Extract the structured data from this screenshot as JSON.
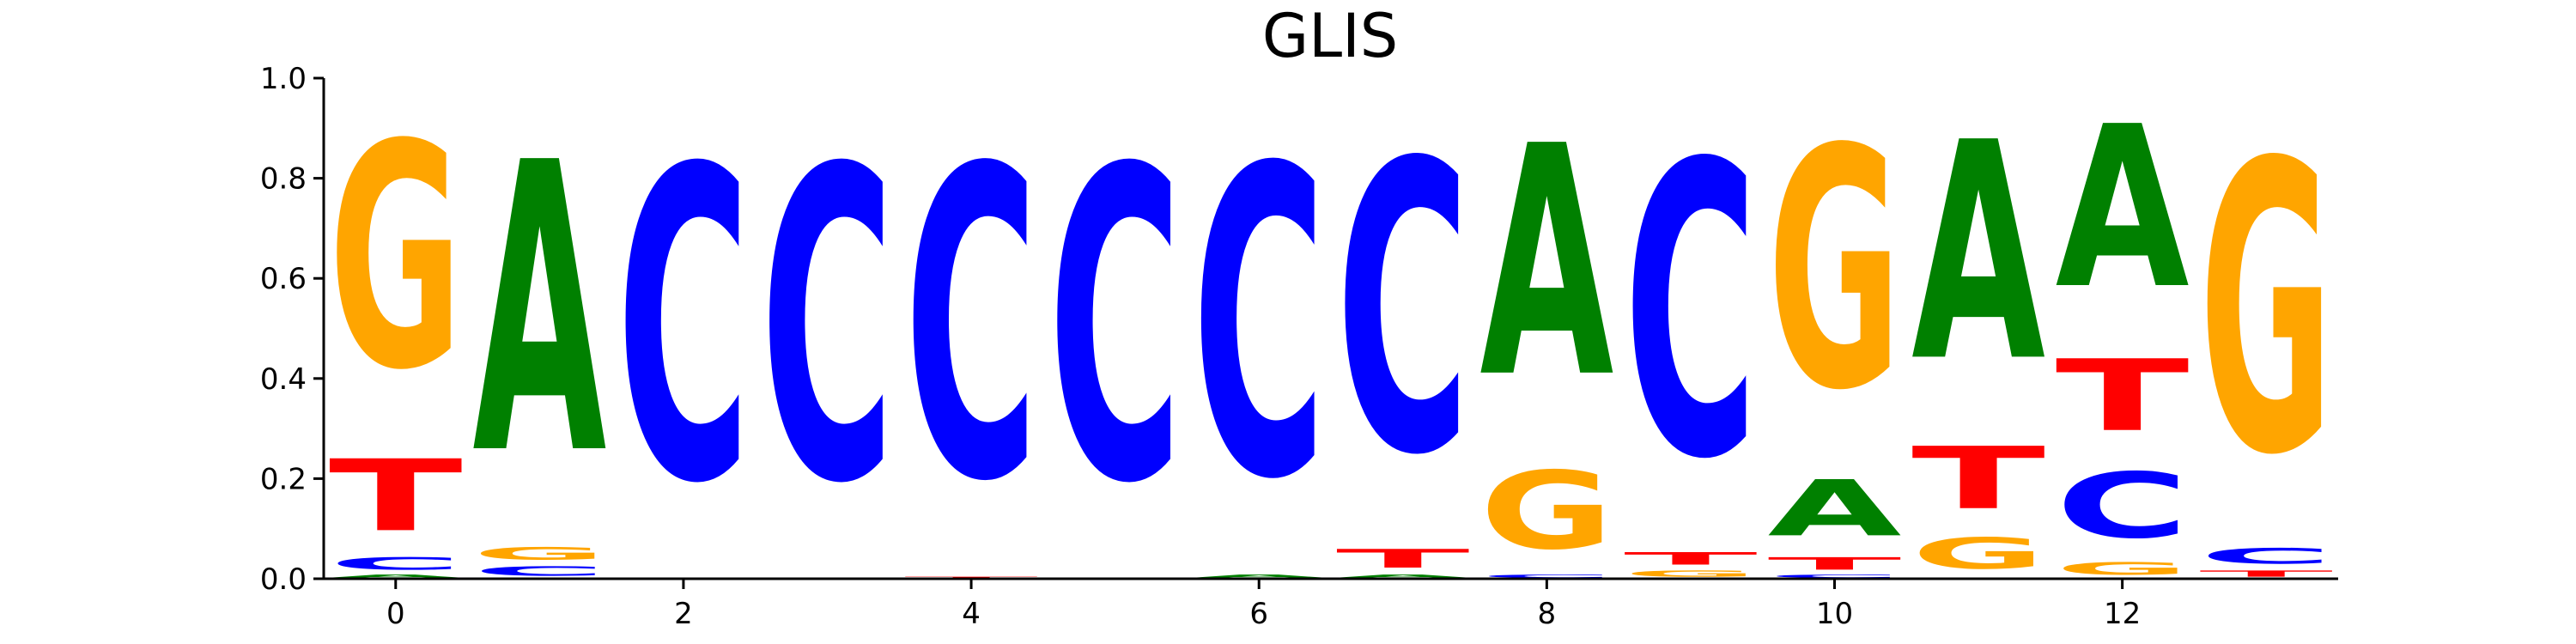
{
  "chart_data": {
    "type": "sequence-logo",
    "title": "GLIS",
    "xlabel": "",
    "ylabel": "",
    "ylim": [
      0,
      1.0
    ],
    "xlim": [
      -0.5,
      13.5
    ],
    "y_ticks": [
      "0.0",
      "0.2",
      "0.4",
      "0.6",
      "0.8",
      "1.0"
    ],
    "x_ticks": [
      "0",
      "2",
      "4",
      "6",
      "8",
      "10",
      "12"
    ],
    "grid": false,
    "letter_colors": {
      "A": "#008000",
      "C": "#0000ff",
      "G": "#ffa500",
      "T": "#ff0000"
    },
    "positions": [
      {
        "x": 0,
        "stack": [
          {
            "base": "A",
            "p": 0.01
          },
          {
            "base": "C",
            "p": 0.04
          },
          {
            "base": "T",
            "p": 0.23
          },
          {
            "base": "G",
            "p": 0.72
          }
        ]
      },
      {
        "x": 1,
        "stack": [
          {
            "base": "C",
            "p": 0.03
          },
          {
            "base": "G",
            "p": 0.04
          },
          {
            "base": "A",
            "p": 0.93
          }
        ]
      },
      {
        "x": 2,
        "stack": [
          {
            "base": "C",
            "p": 1.0
          }
        ]
      },
      {
        "x": 3,
        "stack": [
          {
            "base": "C",
            "p": 1.0
          }
        ]
      },
      {
        "x": 4,
        "stack": [
          {
            "base": "T",
            "p": 0.005
          },
          {
            "base": "C",
            "p": 0.995
          }
        ]
      },
      {
        "x": 5,
        "stack": [
          {
            "base": "C",
            "p": 1.0
          }
        ]
      },
      {
        "x": 6,
        "stack": [
          {
            "base": "A",
            "p": 0.01
          },
          {
            "base": "C",
            "p": 0.99
          }
        ]
      },
      {
        "x": 7,
        "stack": [
          {
            "base": "A",
            "p": 0.01
          },
          {
            "base": "T",
            "p": 0.06
          },
          {
            "base": "C",
            "p": 0.93
          }
        ]
      },
      {
        "x": 8,
        "stack": [
          {
            "base": "C",
            "p": 0.01
          },
          {
            "base": "G",
            "p": 0.25
          },
          {
            "base": "A",
            "p": 0.74
          }
        ]
      },
      {
        "x": 9,
        "stack": [
          {
            "base": "G",
            "p": 0.02
          },
          {
            "base": "T",
            "p": 0.04
          },
          {
            "base": "C",
            "p": 0.94
          }
        ]
      },
      {
        "x": 10,
        "stack": [
          {
            "base": "C",
            "p": 0.01
          },
          {
            "base": "T",
            "p": 0.04
          },
          {
            "base": "A",
            "p": 0.18
          },
          {
            "base": "G",
            "p": 0.77
          }
        ]
      },
      {
        "x": 11,
        "stack": [
          {
            "base": "G",
            "p": 0.1
          },
          {
            "base": "T",
            "p": 0.2
          },
          {
            "base": "A",
            "p": 0.7
          }
        ]
      },
      {
        "x": 12,
        "stack": [
          {
            "base": "G",
            "p": 0.04
          },
          {
            "base": "C",
            "p": 0.21
          },
          {
            "base": "T",
            "p": 0.23
          },
          {
            "base": "A",
            "p": 0.52
          }
        ]
      },
      {
        "x": 13,
        "stack": [
          {
            "base": "T",
            "p": 0.02
          },
          {
            "base": "C",
            "p": 0.05
          },
          {
            "base": "G",
            "p": 0.93
          }
        ]
      }
    ]
  }
}
